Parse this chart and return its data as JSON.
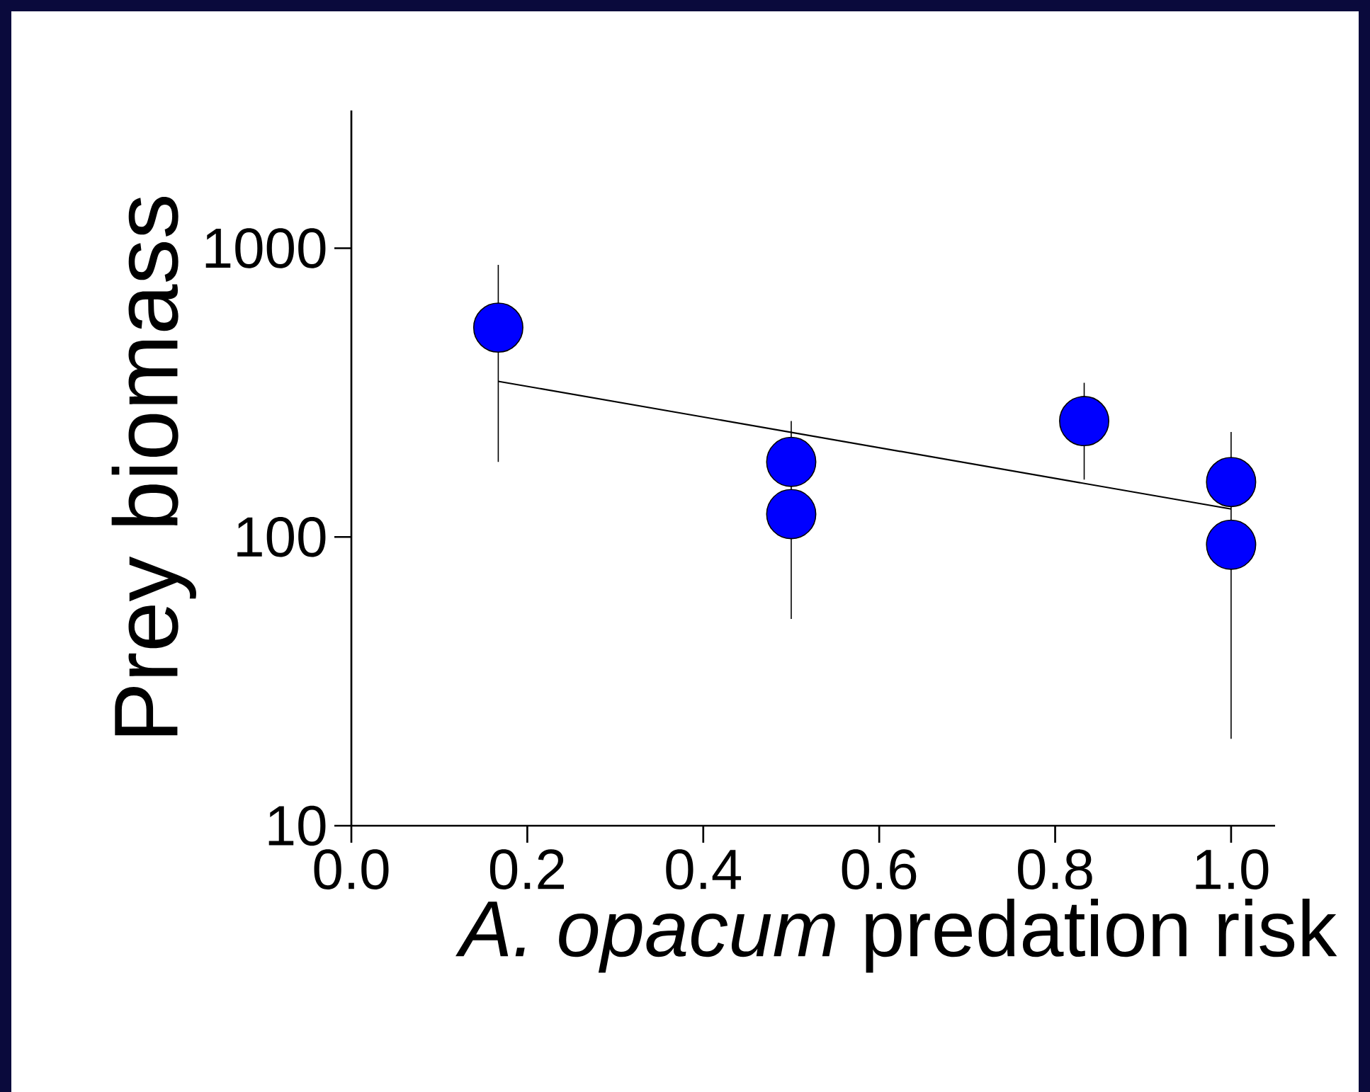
{
  "chart_data": {
    "type": "scatter",
    "xlabel": "*A. opacum* predation risk",
    "ylabel": "Prey biomass",
    "log": "y",
    "xlim": [
      0.0,
      1.05
    ],
    "ylim": [
      10,
      3000
    ],
    "xticks": [
      {
        "value": 0.0,
        "label": "0.0"
      },
      {
        "value": 0.2,
        "label": "0.2"
      },
      {
        "value": 0.4,
        "label": "0.4"
      },
      {
        "value": 0.6,
        "label": "0.6"
      },
      {
        "value": 0.8,
        "label": "0.8"
      },
      {
        "value": 1.0,
        "label": "1.0"
      }
    ],
    "yticks": [
      10,
      100,
      1000
    ],
    "series": [
      {
        "type": "scatter",
        "marker": "circle",
        "color": "#0000ff",
        "x": [
          0.167,
          0.5,
          0.5,
          0.833,
          1.0,
          1.0
        ],
        "values": [
          531,
          182,
          120,
          252,
          155,
          94
        ],
        "errors": [
          [
            182,
            876
          ],
          [
            52,
            252
          ],
          null,
          [
            158,
            342
          ],
          [
            20,
            231
          ],
          null
        ]
      },
      {
        "type": "line",
        "marker": "none",
        "color": "#000000",
        "x": [
          0.167,
          1.0
        ],
        "values": [
          346,
          125
        ]
      }
    ]
  }
}
